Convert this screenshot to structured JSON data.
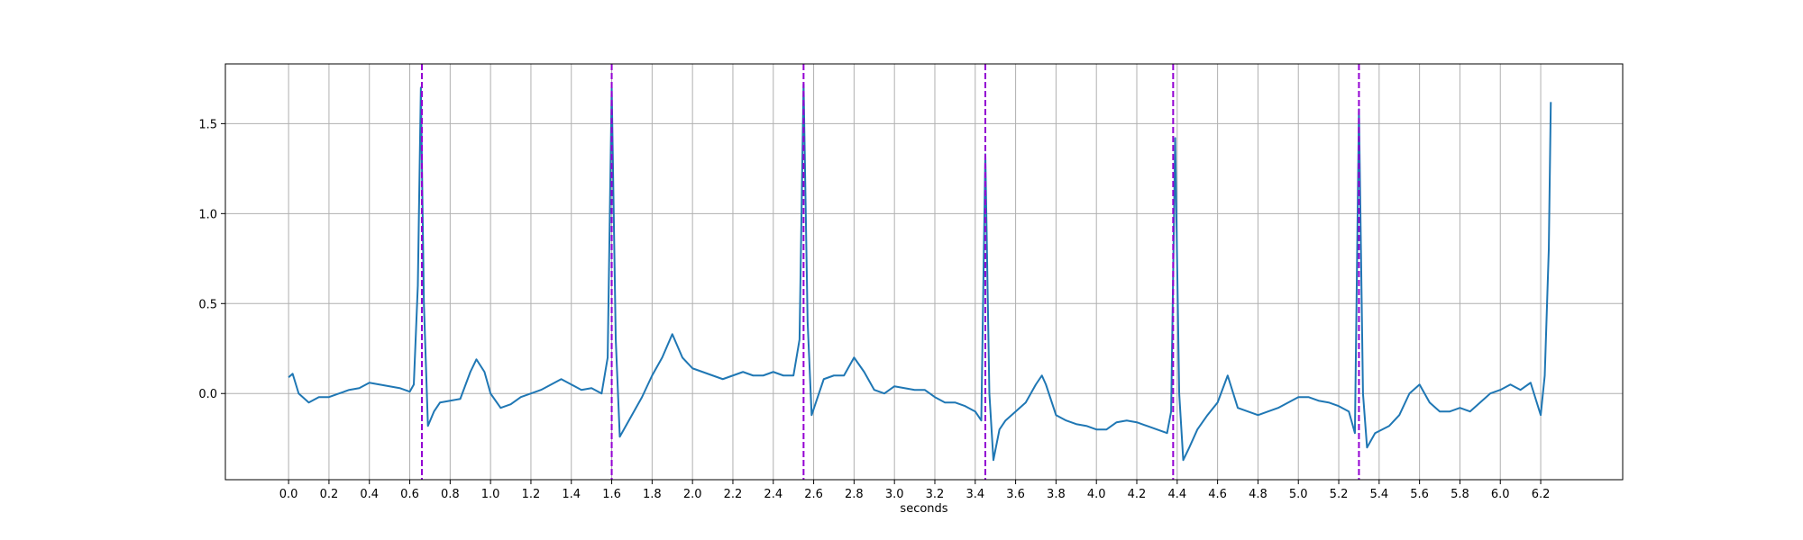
{
  "chart_data": {
    "type": "line",
    "x_label": "seconds",
    "x": [
      0.0,
      0.02,
      0.05,
      0.1,
      0.15,
      0.2,
      0.25,
      0.3,
      0.35,
      0.4,
      0.45,
      0.5,
      0.55,
      0.6,
      0.62,
      0.64,
      0.655,
      0.67,
      0.69,
      0.72,
      0.75,
      0.8,
      0.85,
      0.9,
      0.93,
      0.97,
      1.0,
      1.05,
      1.1,
      1.15,
      1.2,
      1.25,
      1.3,
      1.35,
      1.4,
      1.45,
      1.5,
      1.55,
      1.58,
      1.6,
      1.62,
      1.64,
      1.7,
      1.75,
      1.8,
      1.85,
      1.9,
      1.95,
      2.0,
      2.05,
      2.1,
      2.15,
      2.2,
      2.25,
      2.3,
      2.35,
      2.4,
      2.45,
      2.5,
      2.53,
      2.55,
      2.57,
      2.59,
      2.62,
      2.65,
      2.7,
      2.75,
      2.8,
      2.85,
      2.9,
      2.95,
      3.0,
      3.05,
      3.1,
      3.15,
      3.2,
      3.25,
      3.3,
      3.35,
      3.4,
      3.43,
      3.45,
      3.47,
      3.49,
      3.52,
      3.55,
      3.6,
      3.65,
      3.7,
      3.73,
      3.75,
      3.8,
      3.85,
      3.9,
      3.95,
      4.0,
      4.05,
      4.1,
      4.15,
      4.2,
      4.25,
      4.3,
      4.35,
      4.37,
      4.39,
      4.41,
      4.43,
      4.46,
      4.5,
      4.55,
      4.6,
      4.65,
      4.7,
      4.75,
      4.8,
      4.85,
      4.9,
      4.95,
      5.0,
      5.05,
      5.1,
      5.15,
      5.2,
      5.25,
      5.28,
      5.3,
      5.32,
      5.34,
      5.38,
      5.45,
      5.5,
      5.55,
      5.6,
      5.65,
      5.7,
      5.75,
      5.8,
      5.85,
      5.9,
      5.95,
      6.0,
      6.05,
      6.1,
      6.15,
      6.2,
      6.22,
      6.24,
      6.25
    ],
    "values": [
      0.09,
      0.11,
      0.0,
      -0.05,
      -0.02,
      -0.02,
      0.0,
      0.02,
      0.03,
      0.06,
      0.05,
      0.04,
      0.03,
      0.01,
      0.05,
      0.6,
      1.7,
      0.5,
      -0.18,
      -0.1,
      -0.05,
      -0.04,
      -0.03,
      0.12,
      0.19,
      0.12,
      0.0,
      -0.08,
      -0.06,
      -0.02,
      0.0,
      0.02,
      0.05,
      0.08,
      0.05,
      0.02,
      0.03,
      0.0,
      0.2,
      1.7,
      0.3,
      -0.24,
      -0.12,
      -0.02,
      0.1,
      0.2,
      0.33,
      0.2,
      0.14,
      0.12,
      0.1,
      0.08,
      0.1,
      0.12,
      0.1,
      0.1,
      0.12,
      0.1,
      0.1,
      0.3,
      1.72,
      0.4,
      -0.12,
      -0.02,
      0.08,
      0.1,
      0.1,
      0.2,
      0.12,
      0.02,
      0.0,
      0.04,
      0.03,
      0.02,
      0.02,
      -0.02,
      -0.05,
      -0.05,
      -0.07,
      -0.1,
      -0.15,
      1.33,
      0.0,
      -0.37,
      -0.2,
      -0.15,
      -0.1,
      -0.05,
      0.05,
      0.1,
      0.05,
      -0.12,
      -0.15,
      -0.17,
      -0.18,
      -0.2,
      -0.2,
      -0.16,
      -0.15,
      -0.16,
      -0.18,
      -0.2,
      -0.22,
      -0.1,
      1.42,
      0.0,
      -0.37,
      -0.3,
      -0.2,
      -0.12,
      -0.05,
      0.1,
      -0.08,
      -0.1,
      -0.12,
      -0.1,
      -0.08,
      -0.05,
      -0.02,
      -0.02,
      -0.04,
      -0.05,
      -0.07,
      -0.1,
      -0.22,
      1.58,
      0.0,
      -0.3,
      -0.22,
      -0.18,
      -0.12,
      0.0,
      0.05,
      -0.05,
      -0.1,
      -0.1,
      -0.08,
      -0.1,
      -0.05,
      0.0,
      0.02,
      0.05,
      0.02,
      0.06,
      -0.12,
      0.1,
      0.8,
      1.62
    ],
    "color": "#1f77b4",
    "vlines": [
      0.66,
      1.6,
      2.55,
      3.45,
      4.38,
      5.3
    ],
    "vline_color": "#9400d3",
    "vline_style": "dashed",
    "xlim": [
      -0.313,
      6.606
    ],
    "ylim": [
      -0.479,
      1.832
    ],
    "xticks": [
      {
        "value": 0,
        "label": "0.0"
      },
      0.2,
      0.4,
      0.6,
      0.8,
      {
        "value": 1,
        "label": "1.0"
      },
      1.2,
      1.4,
      1.6,
      1.8,
      {
        "value": 2,
        "label": "2.0"
      },
      2.2,
      2.4,
      2.6,
      2.8,
      {
        "value": 3,
        "label": "3.0"
      },
      3.2,
      3.4,
      3.6,
      3.8,
      {
        "value": 4,
        "label": "4.0"
      },
      4.2,
      4.4,
      4.6,
      4.8,
      {
        "value": 5,
        "label": "5.0"
      },
      5.2,
      5.4,
      5.6,
      5.8,
      {
        "value": 6,
        "label": "6.0"
      },
      6.2
    ],
    "yticks": [
      {
        "value": 0,
        "label": "0.0"
      },
      0.5,
      {
        "value": 1,
        "label": "1.0"
      },
      1.5
    ],
    "grid": true
  }
}
